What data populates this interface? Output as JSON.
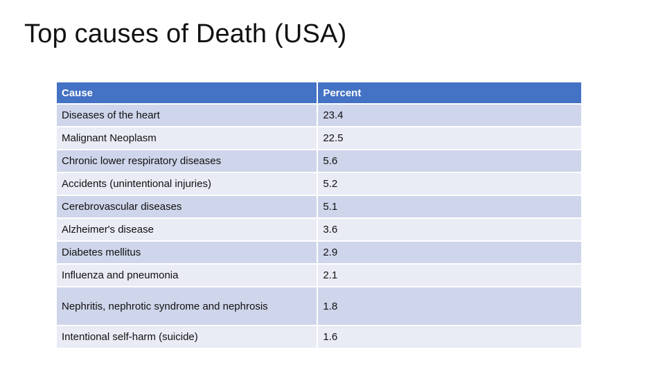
{
  "slide": {
    "title": "Top causes of Death (USA)"
  },
  "table": {
    "headers": [
      "Cause",
      "Percent"
    ],
    "rows": [
      {
        "cause": "Diseases of the heart",
        "percent": "23.4"
      },
      {
        "cause": "Malignant Neoplasm",
        "percent": "22.5"
      },
      {
        "cause": "Chronic lower respiratory diseases",
        "percent": "5.6"
      },
      {
        "cause": "Accidents (unintentional injuries)",
        "percent": "5.2"
      },
      {
        "cause": "Cerebrovascular diseases",
        "percent": "5.1"
      },
      {
        "cause": "Alzheimer's disease",
        "percent": "3.6"
      },
      {
        "cause": "Diabetes mellitus",
        "percent": "2.9"
      },
      {
        "cause": "Influenza and pneumonia",
        "percent": "2.1"
      },
      {
        "cause": "Nephritis, nephrotic syndrome and nephrosis",
        "percent": "1.8"
      },
      {
        "cause": "Intentional self-harm (suicide)",
        "percent": "1.6"
      }
    ]
  },
  "colors": {
    "header_bg": "#4472c4",
    "row_dark": "#cfd5ea",
    "row_light": "#e9ebf5"
  }
}
